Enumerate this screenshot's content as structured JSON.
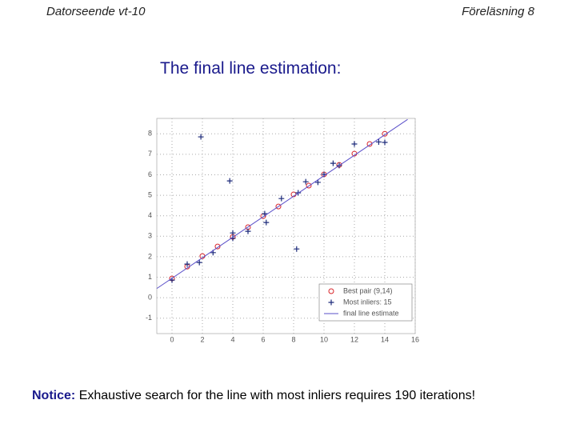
{
  "header": {
    "left": "Datorseende vt-10",
    "right": "Föreläsning 8"
  },
  "heading": "The final line estimation:",
  "chart_data": {
    "type": "scatter",
    "xlim": [
      -1,
      16
    ],
    "ylim": [
      -1.75,
      8.75
    ],
    "xticks": [
      0,
      2,
      4,
      6,
      8,
      10,
      12,
      14,
      16
    ],
    "yticks": [
      -1,
      0,
      1,
      2,
      3,
      4,
      5,
      6,
      7,
      8
    ],
    "grid": true,
    "legend": "lower right",
    "series": [
      {
        "name": "Best pair (9,14)",
        "marker": "circle",
        "color": "#d9262b",
        "x": [
          0,
          1,
          2,
          3,
          4,
          5,
          6,
          7,
          8,
          9,
          10,
          11,
          12,
          13,
          14
        ],
        "values": [
          0.94,
          1.52,
          2.03,
          2.5,
          2.97,
          3.44,
          3.98,
          4.45,
          5.04,
          5.47,
          6.02,
          6.48,
          7.03,
          7.5,
          8.0
        ]
      },
      {
        "name": "Most inliers: 15",
        "marker": "plus",
        "color": "#1c2a7a",
        "x": [
          0,
          1,
          1.9,
          1.8,
          2.7,
          3.8,
          4,
          4,
          5,
          6.1,
          6.2,
          7.2,
          8.2,
          8.3,
          8.8,
          9.6,
          10,
          10.6,
          11,
          12,
          13.6,
          14
        ],
        "values": [
          0.86,
          1.64,
          7.85,
          1.72,
          2.2,
          5.7,
          3.16,
          2.9,
          3.24,
          4.1,
          3.67,
          4.84,
          2.38,
          5.12,
          5.66,
          5.63,
          6.02,
          6.56,
          6.45,
          7.5,
          7.6,
          7.58
        ]
      },
      {
        "name": "final line estimate",
        "marker": "line",
        "color": "#5a4fc9",
        "x": [
          -1,
          15.5
        ],
        "values": [
          0.45,
          8.7
        ]
      }
    ]
  },
  "footer": {
    "label": "Notice:",
    "text": "Exhaustive search for the line with most inliers requires 190 iterations!"
  }
}
